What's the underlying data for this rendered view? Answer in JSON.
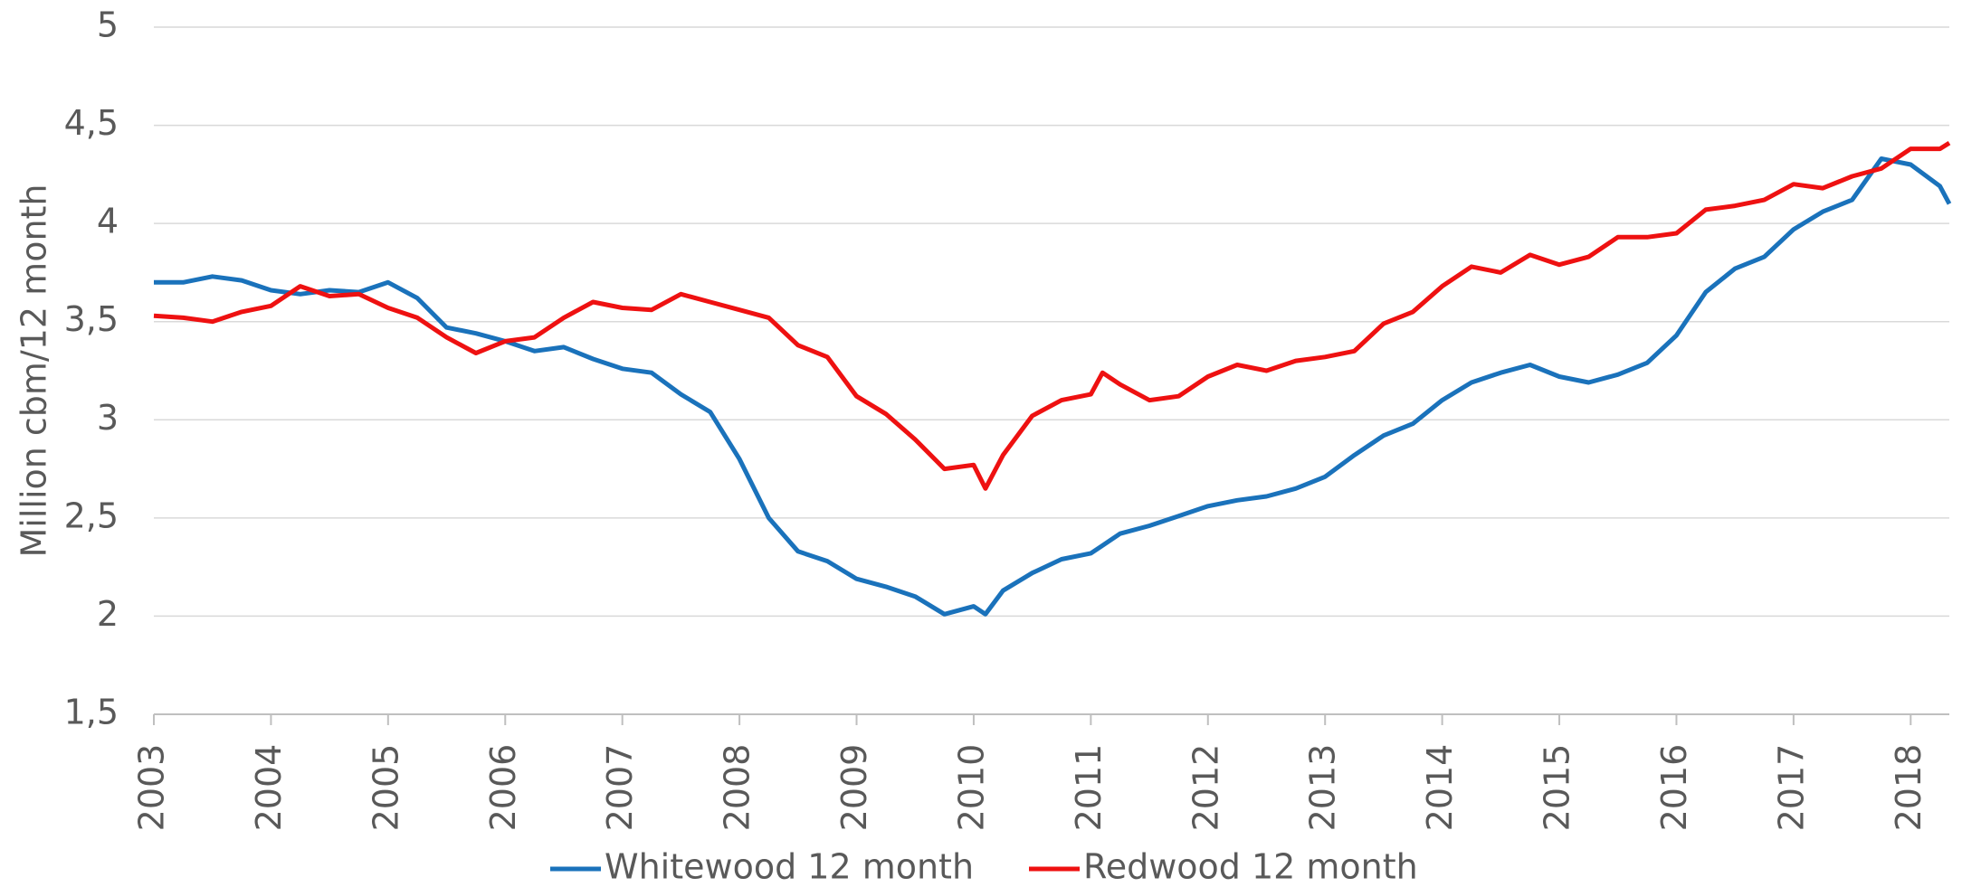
{
  "chart_data": {
    "type": "line",
    "ylabel": "Million cbm/12 month",
    "x": [
      2003,
      2003.25,
      2003.5,
      2003.75,
      2004,
      2004.25,
      2004.5,
      2004.75,
      2005,
      2005.25,
      2005.5,
      2005.75,
      2006,
      2006.25,
      2006.5,
      2006.75,
      2007,
      2007.25,
      2007.5,
      2007.75,
      2008,
      2008.25,
      2008.5,
      2008.75,
      2009,
      2009.25,
      2009.5,
      2009.75,
      2010,
      2010.1,
      2010.25,
      2010.5,
      2010.75,
      2011,
      2011.1,
      2011.25,
      2011.5,
      2011.75,
      2012,
      2012.25,
      2012.5,
      2012.75,
      2013,
      2013.25,
      2013.5,
      2013.75,
      2014,
      2014.25,
      2014.5,
      2014.75,
      2015,
      2015.25,
      2015.5,
      2015.75,
      2016,
      2016.25,
      2016.5,
      2016.75,
      2017,
      2017.25,
      2017.5,
      2017.75,
      2018,
      2018.25,
      2018.33
    ],
    "series": [
      {
        "name": "Whitewood 12 month",
        "color": "#1a72bb",
        "values": [
          3.7,
          3.7,
          3.73,
          3.71,
          3.66,
          3.64,
          3.66,
          3.65,
          3.7,
          3.62,
          3.47,
          3.44,
          3.4,
          3.35,
          3.37,
          3.31,
          3.26,
          3.24,
          3.13,
          3.04,
          2.8,
          2.5,
          2.33,
          2.28,
          2.19,
          2.15,
          2.1,
          2.01,
          2.05,
          2.01,
          2.13,
          2.22,
          2.29,
          2.32,
          2.36,
          2.42,
          2.46,
          2.51,
          2.56,
          2.59,
          2.61,
          2.65,
          2.71,
          2.82,
          2.92,
          2.98,
          3.1,
          3.19,
          3.24,
          3.28,
          3.22,
          3.19,
          3.23,
          3.29,
          3.43,
          3.65,
          3.77,
          3.83,
          3.97,
          4.06,
          4.12,
          4.33,
          4.3,
          4.19,
          4.1
        ]
      },
      {
        "name": "Redwood 12 month",
        "color": "#ee1111",
        "values": [
          3.53,
          3.52,
          3.5,
          3.55,
          3.58,
          3.68,
          3.63,
          3.64,
          3.57,
          3.52,
          3.42,
          3.34,
          3.4,
          3.42,
          3.52,
          3.6,
          3.57,
          3.56,
          3.64,
          3.6,
          3.56,
          3.52,
          3.38,
          3.32,
          3.12,
          3.03,
          2.9,
          2.75,
          2.77,
          2.65,
          2.82,
          3.02,
          3.1,
          3.13,
          3.24,
          3.18,
          3.1,
          3.12,
          3.22,
          3.28,
          3.25,
          3.3,
          3.32,
          3.35,
          3.49,
          3.55,
          3.68,
          3.78,
          3.75,
          3.84,
          3.79,
          3.83,
          3.93,
          3.93,
          3.95,
          4.07,
          4.09,
          4.12,
          4.2,
          4.18,
          4.24,
          4.28,
          4.38,
          4.38,
          4.41
        ]
      }
    ],
    "xlim": [
      2003,
      2018.33
    ],
    "xticks": [
      2003,
      2004,
      2005,
      2006,
      2007,
      2008,
      2009,
      2010,
      2011,
      2012,
      2013,
      2014,
      2015,
      2016,
      2017,
      2018
    ],
    "ylim": [
      1.5,
      5
    ],
    "yticks": [
      {
        "value": 1.5,
        "label": "1,5"
      },
      2,
      {
        "value": 2.5,
        "label": "2,5"
      },
      3,
      {
        "value": 3.5,
        "label": "3,5"
      },
      4,
      {
        "value": 4.5,
        "label": "4,5"
      },
      5
    ],
    "grid": true,
    "legend": "bottom"
  }
}
